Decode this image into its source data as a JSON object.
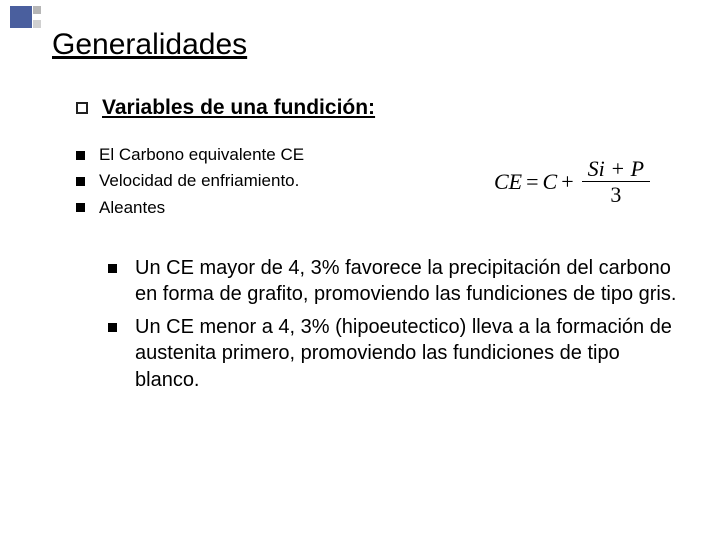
{
  "title": "Generalidades",
  "subtitle": "Variables de una fundición:",
  "list1": {
    "items": [
      "El Carbono equivalente CE",
      "Velocidad de enfriamiento.",
      "Aleantes"
    ]
  },
  "formula": {
    "lhs": "CE",
    "eq": "=",
    "term1": "C",
    "plus": "+",
    "num": "Si + P",
    "den": "3"
  },
  "list2": {
    "items": [
      "Un CE mayor de 4, 3% favorece la precipitación del carbono en forma de grafito, promoviendo las fundiciones de tipo gris.",
      "Un CE menor a 4, 3% (hipoeutectico) lleva a la formación de austenita primero, promoviendo las fundiciones de tipo blanco."
    ]
  },
  "colors": {
    "accent": "#4a5f9e",
    "text": "#000000",
    "bg": "#ffffff"
  }
}
